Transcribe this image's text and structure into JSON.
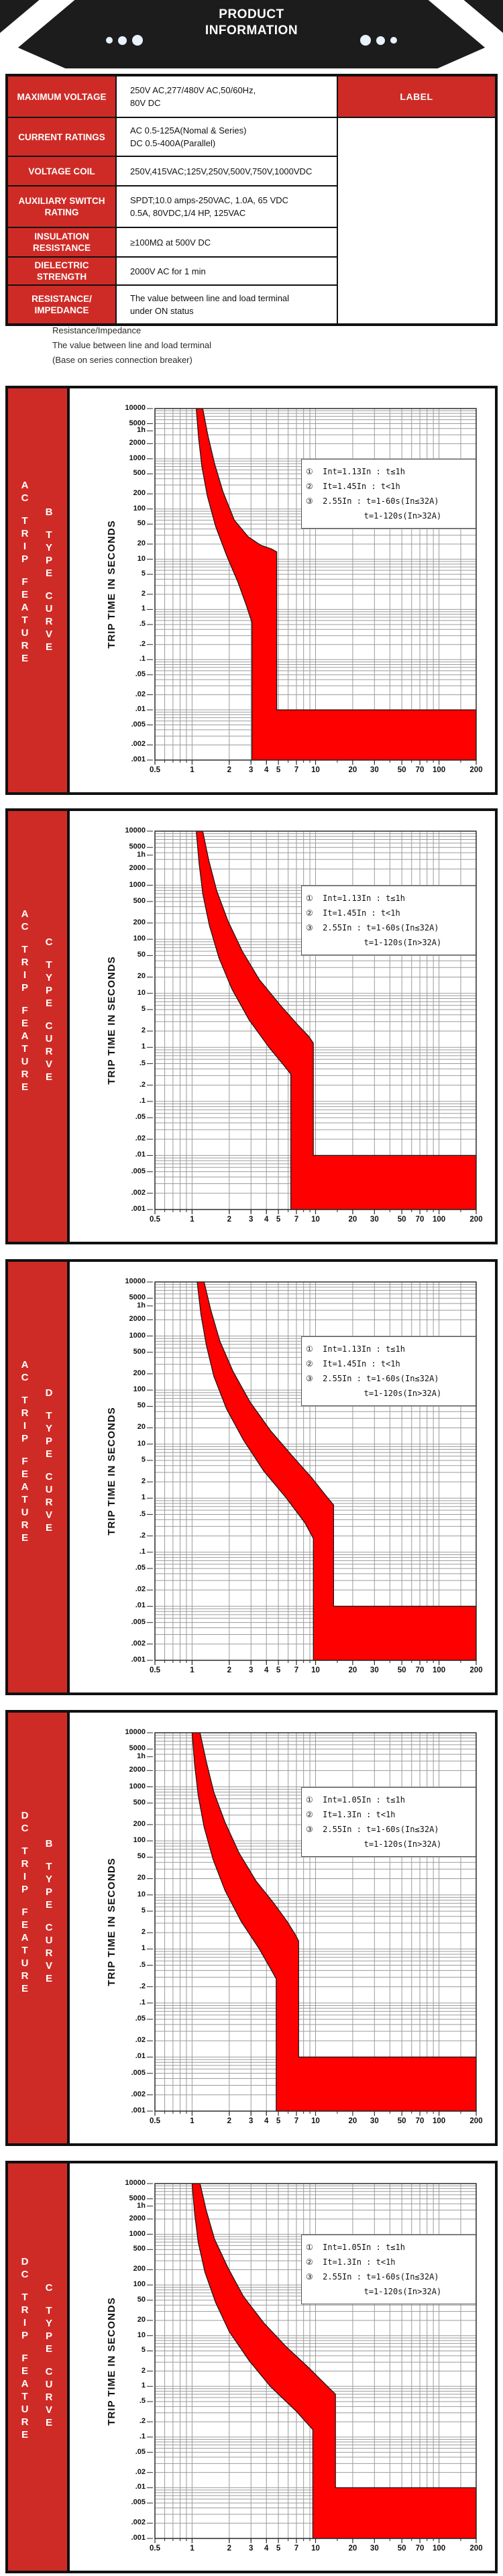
{
  "header": {
    "title_line1": "PRODUCT",
    "title_line2": "INFORMATION"
  },
  "colors": {
    "banner_black": "#1c1c1c",
    "brand_red": "#cf2b26",
    "band_red": "#ff0000",
    "grid_gray": "#9b9b9b",
    "dot_white": "#e9f1fc"
  },
  "spec_table": {
    "side_label": "LABEL",
    "rows": [
      {
        "label": "MAXIMUM VOLTAGE",
        "value_lines": [
          "250V AC,277/480V AC,50/60Hz,",
          "80V DC"
        ]
      },
      {
        "label": "CURRENT RATINGS",
        "value_lines": [
          "AC 0.5-125A(Nomal & Series)",
          "DC 0.5-400A(Parallel)"
        ]
      },
      {
        "label": "VOLTAGE COIL",
        "value_lines": [
          "250V,415VAC;125V,250V,500V,750V,1000VDC"
        ]
      },
      {
        "label": "AUXILIARY SWITCH RATING",
        "value_lines": [
          "SPDT;10.0 amps-250VAC, 1.0A, 65 VDC",
          "0.5A, 80VDC,1/4 HP, 125VAC"
        ]
      },
      {
        "label": "INSULATION RESISTANCE",
        "value_lines": [
          "≥100MΩ at 500V DC"
        ]
      },
      {
        "label": "DIELECTRIC STRENGTH",
        "value_lines": [
          "2000V AC for 1 min"
        ]
      },
      {
        "label": "RESISTANCE/ IMPEDANCE",
        "value_lines": [
          "The value between line and load terminal",
          "under ON status"
        ]
      }
    ]
  },
  "notes": [
    "Resistance/Impedance",
    "The value between line and load terminal",
    "(Base on series connection breaker)"
  ],
  "chart_data": {
    "shared": {
      "type": "area",
      "ylabel": "TRIP TIME IN SECONDS",
      "x_range": [
        0.5,
        200
      ],
      "y_range": [
        0.001,
        10000
      ],
      "x_scale": "log",
      "y_scale": "log",
      "grid": true,
      "legend_position": "upper-right",
      "x_ticks": [
        {
          "label": "0.5",
          "v": 0.5
        },
        {
          "label": "1",
          "v": 1
        },
        {
          "label": "2",
          "v": 2
        },
        {
          "label": "3",
          "v": 3
        },
        {
          "label": "4",
          "v": 4
        },
        {
          "label": "5",
          "v": 5
        },
        {
          "label": "7",
          "v": 7
        },
        {
          "label": "10",
          "v": 10
        },
        {
          "label": "20",
          "v": 20
        },
        {
          "label": "30",
          "v": 30
        },
        {
          "label": "50",
          "v": 50
        },
        {
          "label": "70",
          "v": 70
        },
        {
          "label": "100",
          "v": 100
        },
        {
          "label": "200",
          "v": 200
        }
      ],
      "y_ticks": [
        {
          "label": "10000",
          "v": 10000
        },
        {
          "label": "5000",
          "v": 5000
        },
        {
          "label": "1h",
          "v": 3600
        },
        {
          "label": "2000",
          "v": 2000
        },
        {
          "label": "1000",
          "v": 1000
        },
        {
          "label": "500",
          "v": 500
        },
        {
          "label": "200",
          "v": 200
        },
        {
          "label": "100",
          "v": 100
        },
        {
          "label": "50",
          "v": 50
        },
        {
          "label": "20",
          "v": 20
        },
        {
          "label": "10",
          "v": 10
        },
        {
          "label": "5",
          "v": 5
        },
        {
          "label": "2",
          "v": 2
        },
        {
          "label": "1",
          "v": 1
        },
        {
          "label": ".5",
          "v": 0.5
        },
        {
          "label": ".2",
          "v": 0.2
        },
        {
          "label": ".1",
          "v": 0.1
        },
        {
          "label": ".05",
          "v": 0.05
        },
        {
          "label": ".02",
          "v": 0.02
        },
        {
          "label": ".01",
          "v": 0.01
        },
        {
          "label": ".005",
          "v": 0.005
        },
        {
          "label": ".002",
          "v": 0.002
        },
        {
          "label": ".001",
          "v": 0.001
        }
      ]
    },
    "charts": [
      {
        "title": "AC TRIP FEATURE - B TYPE CURVE",
        "sidebar_col1": [
          "AC",
          "TRIP",
          "FEATURE"
        ],
        "sidebar_col2": [
          "B",
          "TYPE",
          "CURVE"
        ],
        "legend": [
          "①  Int=1.13In : t≤1h",
          "②  It=1.45In : t<1h",
          "③  2.55In : t=1-60s(In≤32A)",
          "            t=1-120s(In>32A)"
        ],
        "band": {
          "left": [
            [
              1.08,
              10000
            ],
            [
              1.13,
              2500
            ],
            [
              1.2,
              700
            ],
            [
              1.33,
              180
            ],
            [
              1.55,
              45
            ],
            [
              1.9,
              12
            ],
            [
              2.35,
              3.5
            ],
            [
              2.75,
              1.2
            ],
            [
              3.05,
              0.55
            ]
          ],
          "inst_left": 3.05,
          "right": [
            [
              1.22,
              10000
            ],
            [
              1.34,
              3000
            ],
            [
              1.52,
              800
            ],
            [
              1.78,
              220
            ],
            [
              2.2,
              60
            ],
            [
              2.85,
              28
            ],
            [
              3.6,
              19
            ],
            [
              4.4,
              16
            ],
            [
              4.85,
              14
            ]
          ],
          "inst_right": 4.85,
          "rect_top": 0.01
        }
      },
      {
        "title": "AC TRIP FEATURE - C TYPE CURVE",
        "sidebar_col1": [
          "AC",
          "TRIP",
          "FEATURE"
        ],
        "sidebar_col2": [
          "C",
          "TYPE",
          "CURVE"
        ],
        "legend": [
          "①  Int=1.13In : t≤1h",
          "②  It=1.45In : t<1h",
          "③  2.55In : t=1-60s(In≤32A)",
          "            t=1-120s(In>32A)"
        ],
        "band": {
          "left": [
            [
              1.08,
              10000
            ],
            [
              1.14,
              2500
            ],
            [
              1.22,
              700
            ],
            [
              1.38,
              180
            ],
            [
              1.65,
              45
            ],
            [
              2.1,
              12
            ],
            [
              2.9,
              3.2
            ],
            [
              4.2,
              1.0
            ],
            [
              5.6,
              0.45
            ],
            [
              6.3,
              0.32
            ]
          ],
          "inst_left": 6.3,
          "right": [
            [
              1.22,
              10000
            ],
            [
              1.36,
              3000
            ],
            [
              1.58,
              800
            ],
            [
              1.95,
              220
            ],
            [
              2.55,
              60
            ],
            [
              3.5,
              18
            ],
            [
              5.2,
              6
            ],
            [
              7.2,
              2.6
            ],
            [
              8.8,
              1.6
            ],
            [
              9.6,
              1.2
            ]
          ],
          "inst_right": 9.6,
          "rect_top": 0.01
        }
      },
      {
        "title": "AC TRIP FEATURE - D TYPE CURVE",
        "sidebar_col1": [
          "AC",
          "TRIP",
          "FEATURE"
        ],
        "sidebar_col2": [
          "D",
          "TYPE",
          "CURVE"
        ],
        "legend": [
          "①  Int=1.13In : t≤1h",
          "②  It=1.45In : t<1h",
          "③  2.55In : t=1-60s(In≤32A)",
          "            t=1-120s(In>32A)"
        ],
        "band": {
          "left": [
            [
              1.1,
              10000
            ],
            [
              1.18,
              2500
            ],
            [
              1.3,
              700
            ],
            [
              1.5,
              180
            ],
            [
              1.9,
              45
            ],
            [
              2.6,
              12
            ],
            [
              3.8,
              3.2
            ],
            [
              5.8,
              1.0
            ],
            [
              8.2,
              0.35
            ],
            [
              9.6,
              0.18
            ]
          ],
          "inst_left": 9.6,
          "right": [
            [
              1.25,
              10000
            ],
            [
              1.42,
              3000
            ],
            [
              1.68,
              800
            ],
            [
              2.15,
              220
            ],
            [
              2.95,
              60
            ],
            [
              4.3,
              18
            ],
            [
              6.5,
              6
            ],
            [
              9.3,
              2.4
            ],
            [
              12.2,
              1.1
            ],
            [
              14.0,
              0.75
            ]
          ],
          "inst_right": 14.0,
          "rect_top": 0.01
        }
      },
      {
        "title": "DC TRIP FEATURE - B TYPE CURVE",
        "sidebar_col1": [
          "DC",
          "TRIP",
          "FEATURE"
        ],
        "sidebar_col2": [
          "B",
          "TYPE",
          "CURVE"
        ],
        "legend": [
          "①  Int=1.05In : t≤1h",
          "②  It=1.3In : t<1h",
          "③  2.55In : t=1-60s(In≤32A)",
          "            t=1-120s(In>32A)"
        ],
        "band": {
          "left": [
            [
              1.0,
              10000
            ],
            [
              1.05,
              2500
            ],
            [
              1.12,
              700
            ],
            [
              1.25,
              180
            ],
            [
              1.48,
              45
            ],
            [
              1.85,
              12
            ],
            [
              2.5,
              3.2
            ],
            [
              3.5,
              1.0
            ],
            [
              4.4,
              0.4
            ],
            [
              4.8,
              0.28
            ]
          ],
          "inst_left": 4.8,
          "right": [
            [
              1.16,
              10000
            ],
            [
              1.3,
              3000
            ],
            [
              1.5,
              800
            ],
            [
              1.85,
              220
            ],
            [
              2.4,
              60
            ],
            [
              3.3,
              18
            ],
            [
              4.6,
              7
            ],
            [
              5.9,
              3.2
            ],
            [
              6.9,
              1.8
            ],
            [
              7.3,
              1.4
            ]
          ],
          "inst_right": 7.3,
          "rect_top": 0.01
        }
      },
      {
        "title": "DC TRIP FEATURE - C TYPE CURVE",
        "sidebar_col1": [
          "DC",
          "TRIP",
          "FEATURE"
        ],
        "sidebar_col2": [
          "C",
          "TYPE",
          "CURVE"
        ],
        "legend": [
          "①  Int=1.05In : t≤1h",
          "②  It=1.3In : t<1h",
          "③  2.55In : t=1-60s(In≤32A)",
          "            t=1-120s(In>32A)"
        ],
        "band": {
          "left": [
            [
              1.0,
              10000
            ],
            [
              1.05,
              2500
            ],
            [
              1.12,
              700
            ],
            [
              1.27,
              180
            ],
            [
              1.55,
              45
            ],
            [
              2.0,
              12
            ],
            [
              2.9,
              3.2
            ],
            [
              4.3,
              1.0
            ],
            [
              7.0,
              0.32
            ],
            [
              9.5,
              0.14
            ]
          ],
          "inst_left": 9.5,
          "right": [
            [
              1.16,
              10000
            ],
            [
              1.3,
              3000
            ],
            [
              1.52,
              800
            ],
            [
              1.95,
              220
            ],
            [
              2.6,
              60
            ],
            [
              3.8,
              18
            ],
            [
              5.8,
              6
            ],
            [
              8.7,
              2.4
            ],
            [
              12.5,
              1.0
            ],
            [
              14.5,
              0.7
            ]
          ],
          "inst_right": 14.5,
          "rect_top": 0.01
        }
      }
    ]
  }
}
